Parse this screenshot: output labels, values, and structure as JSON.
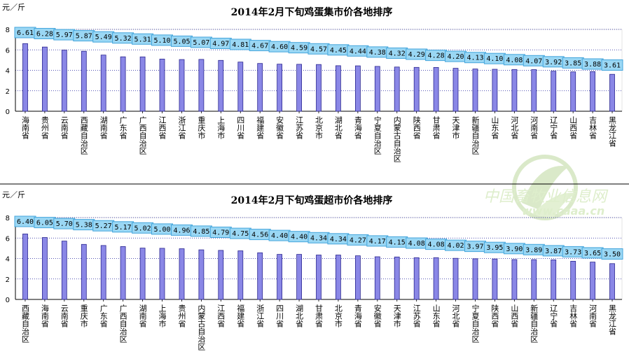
{
  "colors": {
    "bar_fill": "#8a87e6",
    "bar_stroke": "#2b2790",
    "label_bg": "#9ad7f4",
    "label_border": "#45a6dc",
    "grid": "#1a1a9a",
    "axis": "#000000",
    "divider": "#000000"
  },
  "watermark": {
    "text_cn": "中国畜牧业信息网",
    "text_url": "www.caaa.cn"
  },
  "chart_data": [
    {
      "type": "bar",
      "title": "2014年2月下旬鸡蛋集市价各地排序",
      "ylabel": "元／斤",
      "ylim": [
        0,
        8
      ],
      "yticks": [
        "0",
        "2",
        "4",
        "6",
        "8"
      ],
      "grid": true,
      "categories": [
        "海南省",
        "贵州省",
        "云南省",
        "西藏自治区",
        "湖南省",
        "广东省",
        "广西自治区",
        "江西省",
        "浙江省",
        "重庆市",
        "上海市",
        "四川省",
        "福建省",
        "安徽省",
        "江苏省",
        "北京市",
        "湖北省",
        "青海省",
        "宁夏自治区",
        "内蒙古自治区",
        "陕西省",
        "甘肃省",
        "天津市",
        "新疆自治区",
        "山东省",
        "河北省",
        "河南省",
        "辽宁省",
        "山西省",
        "吉林省",
        "黑龙江省"
      ],
      "values": [
        6.61,
        6.28,
        5.97,
        5.87,
        5.49,
        5.32,
        5.31,
        5.1,
        5.05,
        5.07,
        4.97,
        4.81,
        4.67,
        4.6,
        4.59,
        4.57,
        4.45,
        4.44,
        4.38,
        4.32,
        4.29,
        4.28,
        4.2,
        4.13,
        4.1,
        4.08,
        4.07,
        3.92,
        3.85,
        3.88,
        3.61
      ],
      "value_labels": [
        "6.61",
        "6.28",
        "5.97",
        "5.87",
        "5.49",
        "5.32",
        "5.31",
        "5.10",
        "5.05",
        "5.07",
        "4.97",
        "4.81",
        "4.67",
        "4.60",
        "4.59",
        "4.57",
        "4.45",
        "4.44",
        "4.38",
        "4.32",
        "4.29",
        "4.28",
        "4.20",
        "4.13",
        "4.10",
        "4.08",
        "4.07",
        "3.92",
        "3.85",
        "3.88",
        "3.61"
      ]
    },
    {
      "type": "bar",
      "title": "2014年2月下旬鸡蛋超市价各地排序",
      "ylabel": "元／斤",
      "ylim": [
        0,
        8
      ],
      "yticks": [
        "0",
        "2",
        "4",
        "6",
        "8"
      ],
      "grid": true,
      "categories": [
        "西藏自治区",
        "海南省",
        "云南省",
        "重庆市",
        "广东省",
        "广西自治区",
        "湖南省",
        "上海市",
        "贵州省",
        "内蒙古自治区",
        "江西省",
        "福建省",
        "浙江省",
        "四川省",
        "湖北省",
        "甘肃省",
        "北京市",
        "青海省",
        "安徽省",
        "天津市",
        "江苏省",
        "山东省",
        "河北省",
        "宁夏自治区",
        "陕西省",
        "山西省",
        "新疆自治区",
        "辽宁省",
        "吉林省",
        "河南省",
        "黑龙江省"
      ],
      "values": [
        6.4,
        6.05,
        5.7,
        5.38,
        5.27,
        5.17,
        5.02,
        5.0,
        4.96,
        4.85,
        4.79,
        4.75,
        4.56,
        4.4,
        4.4,
        4.34,
        4.34,
        4.27,
        4.17,
        4.15,
        4.08,
        4.08,
        4.02,
        3.97,
        3.95,
        3.9,
        3.89,
        3.87,
        3.73,
        3.65,
        3.5
      ],
      "value_labels": [
        "6.40",
        "6.05",
        "5.70",
        "5.38",
        "5.27",
        "5.17",
        "5.02",
        "5.00",
        "4.96",
        "4.85",
        "4.79",
        "4.75",
        "4.56",
        "4.40",
        "4.40",
        "4.34",
        "4.34",
        "4.27",
        "4.17",
        "4.15",
        "4.08",
        "4.08",
        "4.02",
        "3.97",
        "3.95",
        "3.90",
        "3.89",
        "3.87",
        "3.73",
        "3.65",
        "3.50"
      ]
    }
  ]
}
